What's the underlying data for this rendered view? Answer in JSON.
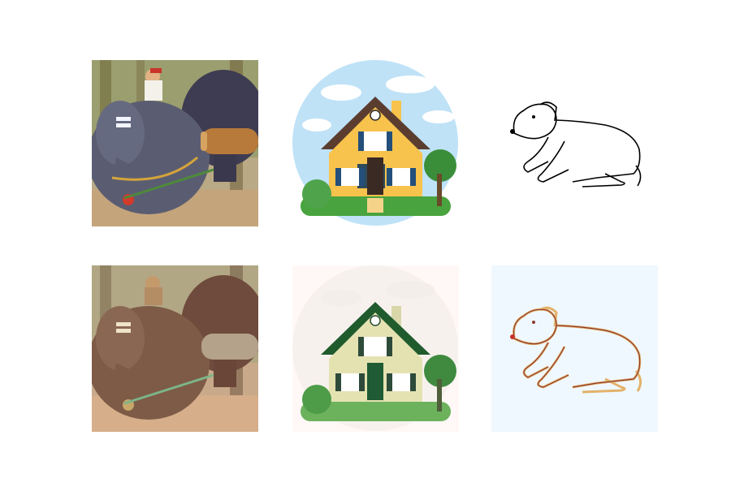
{
  "figure": {
    "rows": [
      {
        "row": "original",
        "tiles": [
          {
            "subject": "elephants",
            "style": "color-painting"
          },
          {
            "subject": "house",
            "style": "clipart"
          },
          {
            "subject": "dog",
            "style": "line-sketch"
          }
        ]
      },
      {
        "row": "stylized",
        "tiles": [
          {
            "subject": "elephants",
            "style": "stylized-painting"
          },
          {
            "subject": "house",
            "style": "faded-clipart"
          },
          {
            "subject": "dog",
            "style": "colored-outline"
          }
        ]
      }
    ],
    "colors": {
      "page_background": "#ffffff",
      "elephant_gray": "#5a5d72",
      "elephant_brown": "#7d5b47",
      "house_yellow": "#f7c34d",
      "roof_brown": "#5b3d2f",
      "shutter_blue": "#234f7a",
      "sky_blue": "#bfe2f7",
      "grass_green": "#49a33e",
      "dog_outline_row1": "#000000",
      "dog_outline_row2": "#c89a3a",
      "panel_tint": "#eff8fe"
    }
  }
}
